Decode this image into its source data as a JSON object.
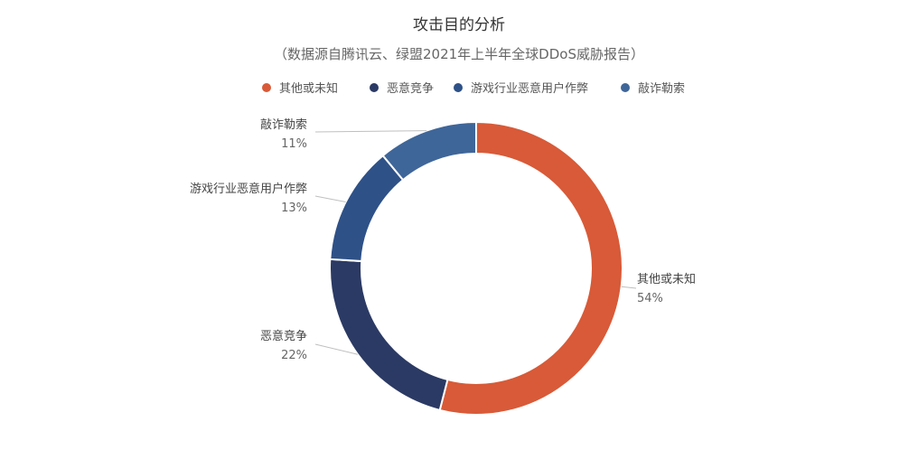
{
  "chart_data": {
    "type": "pie",
    "variant": "donut",
    "title": "攻击目的分析",
    "subtitle": "（数据源自腾讯云、绿盟2021年上半年全球DDoS威胁报告）",
    "legend_position": "top",
    "slices": [
      {
        "label": "其他或未知",
        "value": 54,
        "value_label": "54%",
        "color": "#d85a38"
      },
      {
        "label": "恶意竞争",
        "value": 22,
        "value_label": "22%",
        "color": "#2b3a64"
      },
      {
        "label": "游戏行业恶意用户作弊",
        "value": 13,
        "value_label": "13%",
        "color": "#2e5187"
      },
      {
        "label": "敲诈勒索",
        "value": 11,
        "value_label": "11%",
        "color": "#3f6699"
      }
    ]
  }
}
